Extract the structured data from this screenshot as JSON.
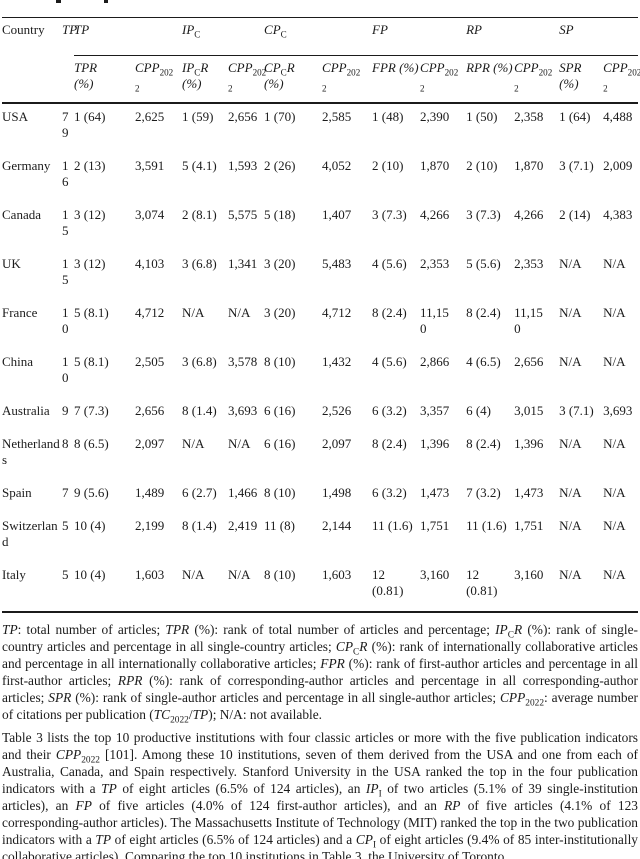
{
  "colors": {
    "background": "#ffffff",
    "text": "#1b1b1b",
    "rule": "#1b1b1b"
  },
  "table": {
    "header_groups": [
      {
        "name": "country",
        "rowspan": 2,
        "colspan": 1,
        "runs": [
          {
            "t": "Country"
          }
        ]
      },
      {
        "name": "tp-column",
        "rowspan": 2,
        "colspan": 1,
        "runs": [
          {
            "t": "TP",
            "i": 1
          }
        ]
      },
      {
        "name": "tp-group",
        "colspan": 2,
        "runs": [
          {
            "t": "TP",
            "i": 1
          }
        ]
      },
      {
        "name": "ipc-group",
        "colspan": 2,
        "runs": [
          {
            "t": "IP",
            "i": 1
          },
          {
            "t": "C",
            "s": 1
          }
        ]
      },
      {
        "name": "cpc-group",
        "colspan": 2,
        "runs": [
          {
            "t": "CP",
            "i": 1
          },
          {
            "t": "C",
            "s": 1
          }
        ]
      },
      {
        "name": "fp-group",
        "colspan": 2,
        "runs": [
          {
            "t": "FP",
            "i": 1
          }
        ]
      },
      {
        "name": "rp-group",
        "colspan": 2,
        "runs": [
          {
            "t": "RP",
            "i": 1
          }
        ]
      },
      {
        "name": "sp-group",
        "colspan": 2,
        "runs": [
          {
            "t": "SP",
            "i": 1
          }
        ]
      }
    ],
    "subheaders": [
      {
        "name": "tpr",
        "runs": [
          {
            "t": "TPR",
            "i": 1
          },
          {
            "br": 1
          },
          {
            "t": "(%)",
            "i": 1
          }
        ]
      },
      {
        "name": "cpp2022-tp",
        "runs": [
          {
            "t": "CPP",
            "i": 1
          },
          {
            "t": "202",
            "s": 1
          },
          {
            "br": 1
          },
          {
            "t": "2",
            "s": 1
          }
        ]
      },
      {
        "name": "ipcr",
        "runs": [
          {
            "t": "IP",
            "i": 1
          },
          {
            "t": "C",
            "s": 1
          },
          {
            "t": "R",
            "i": 1
          },
          {
            "br": 1
          },
          {
            "t": "(%)",
            "i": 1
          }
        ]
      },
      {
        "name": "cpp2022-ipc",
        "runs": [
          {
            "t": "CPP",
            "i": 1
          },
          {
            "t": "202",
            "s": 1
          },
          {
            "br": 1
          },
          {
            "t": "2",
            "s": 1
          }
        ]
      },
      {
        "name": "cpcr",
        "runs": [
          {
            "t": "CP",
            "i": 1
          },
          {
            "t": "C",
            "s": 1
          },
          {
            "t": "R",
            "i": 1
          },
          {
            "br": 1
          },
          {
            "t": "(%)",
            "i": 1
          }
        ]
      },
      {
        "name": "cpp2022-cpc",
        "runs": [
          {
            "t": "CPP",
            "i": 1
          },
          {
            "t": "202",
            "s": 1
          },
          {
            "br": 1
          },
          {
            "t": "2",
            "s": 1
          }
        ]
      },
      {
        "name": "fpr",
        "runs": [
          {
            "t": "FPR (%)",
            "i": 1
          }
        ]
      },
      {
        "name": "cpp2022-fp",
        "runs": [
          {
            "t": "CPP",
            "i": 1
          },
          {
            "t": "202",
            "s": 1
          },
          {
            "br": 1
          },
          {
            "t": "2",
            "s": 1
          }
        ]
      },
      {
        "name": "rpr",
        "runs": [
          {
            "t": "RPR (%)",
            "i": 1
          }
        ]
      },
      {
        "name": "cpp2022-rp",
        "runs": [
          {
            "t": "CPP",
            "i": 1
          },
          {
            "t": "202",
            "s": 1
          },
          {
            "br": 1
          },
          {
            "t": "2",
            "s": 1
          }
        ]
      },
      {
        "name": "spr",
        "runs": [
          {
            "t": "SPR",
            "i": 1
          },
          {
            "br": 1
          },
          {
            "t": "(%)",
            "i": 1
          }
        ]
      },
      {
        "name": "cpp2022-sp",
        "runs": [
          {
            "t": "CPP",
            "i": 1
          },
          {
            "t": "202",
            "s": 1
          },
          {
            "br": 1
          },
          {
            "t": "2",
            "s": 1
          }
        ]
      }
    ],
    "rows": [
      {
        "cells": [
          "USA",
          "79",
          "1 (64)",
          "2,625",
          "1 (59)",
          "2,656",
          "1 (70)",
          "2,585",
          "1 (48)",
          "2,390",
          "1 (50)",
          "2,358",
          "1 (64)",
          "4,488"
        ]
      },
      {
        "cells": [
          "Germany",
          "16",
          "2 (13)",
          "3,591",
          "5 (4.1)",
          "1,593",
          "2 (26)",
          "4,052",
          "2 (10)",
          "1,870",
          "2 (10)",
          "1,870",
          "3 (7.1)",
          "2,009"
        ]
      },
      {
        "cells": [
          "Canada",
          "15",
          "3 (12)",
          "3,074",
          "2 (8.1)",
          "5,575",
          "5 (18)",
          "1,407",
          "3 (7.3)",
          "4,266",
          "3 (7.3)",
          "4,266",
          "2 (14)",
          "4,383"
        ]
      },
      {
        "cells": [
          "UK",
          "15",
          "3 (12)",
          "4,103",
          "3 (6.8)",
          "1,341",
          "3 (20)",
          "5,483",
          "4 (5.6)",
          "2,353",
          "5 (5.6)",
          "2,353",
          "N/A",
          "N/A"
        ]
      },
      {
        "cells": [
          "France",
          "10",
          "5 (8.1)",
          "4,712",
          "N/A",
          "N/A",
          "3 (20)",
          "4,712",
          "8 (2.4)",
          "11,150",
          "8 (2.4)",
          "11,150",
          "N/A",
          "N/A"
        ]
      },
      {
        "cells": [
          "China",
          "10",
          "5 (8.1)",
          "2,505",
          "3 (6.8)",
          "3,578",
          "8 (10)",
          "1,432",
          "4 (5.6)",
          "2,866",
          "4 (6.5)",
          "2,656",
          "N/A",
          "N/A"
        ]
      },
      {
        "cells": [
          "Australia",
          "9",
          "7 (7.3)",
          "2,656",
          "8 (1.4)",
          "3,693",
          "6 (16)",
          "2,526",
          "6 (3.2)",
          "3,357",
          "6 (4)",
          "3,015",
          "3 (7.1)",
          "3,693"
        ]
      },
      {
        "cells": [
          "Netherlands",
          "8",
          "8 (6.5)",
          "2,097",
          "N/A",
          "N/A",
          "6 (16)",
          "2,097",
          "8 (2.4)",
          "1,396",
          "8 (2.4)",
          "1,396",
          "N/A",
          "N/A"
        ]
      },
      {
        "cells": [
          "Spain",
          "7",
          "9 (5.6)",
          "1,489",
          "6 (2.7)",
          "1,466",
          "8 (10)",
          "1,498",
          "6 (3.2)",
          "1,473",
          "7 (3.2)",
          "1,473",
          "N/A",
          "N/A"
        ]
      },
      {
        "cells": [
          "Switzerland",
          "5",
          "10 (4)",
          "2,199",
          "8 (1.4)",
          "2,419",
          "11 (8)",
          "2,144",
          "11 (1.6)",
          "1,751",
          "11 (1.6)",
          "1,751",
          "N/A",
          "N/A"
        ]
      },
      {
        "cells": [
          "Italy",
          "5",
          "10 (4)",
          "1,603",
          "N/A",
          "N/A",
          "8 (10)",
          "1,603",
          "12 (0.81)",
          "3,160",
          "12 (0.81)",
          "3,160",
          "N/A",
          "N/A"
        ]
      }
    ]
  },
  "footnote_runs": [
    {
      "t": "TP",
      "i": 1
    },
    {
      "t": ": total number of articles; "
    },
    {
      "t": "TPR",
      "i": 1
    },
    {
      "t": " (%): rank of total number of articles and percentage; "
    },
    {
      "t": "IP",
      "i": 1
    },
    {
      "t": "C",
      "s": 1
    },
    {
      "t": "R",
      "i": 1
    },
    {
      "t": " (%): rank of single-country articles and percentage in all single-country articles; "
    },
    {
      "t": "CP",
      "i": 1
    },
    {
      "t": "C",
      "s": 1
    },
    {
      "t": "R",
      "i": 1
    },
    {
      "t": " (%): rank of internationally collaborative articles and percentage in all internationally collaborative articles; "
    },
    {
      "t": "FPR",
      "i": 1
    },
    {
      "t": " (%): rank of first-author articles and percentage in all first-author articles; "
    },
    {
      "t": "RPR",
      "i": 1
    },
    {
      "t": " (%): rank of corresponding-author articles and percentage in all corresponding-author articles; "
    },
    {
      "t": "SPR",
      "i": 1
    },
    {
      "t": " (%): rank of single-author articles and percentage in all single-author articles; "
    },
    {
      "t": "CPP",
      "i": 1
    },
    {
      "t": "2022",
      "s": 1
    },
    {
      "t": ": average number of citations per publication ("
    },
    {
      "t": "TC",
      "i": 1
    },
    {
      "t": "2022",
      "s": 1
    },
    {
      "t": "/"
    },
    {
      "t": "TP",
      "i": 1
    },
    {
      "t": "); N/A: not available."
    }
  ],
  "paragraph_runs": [
    {
      "t": "Table 3 lists the top 10 productive institutions with four classic articles or more with the five publication indicators and their "
    },
    {
      "t": "CPP",
      "i": 1
    },
    {
      "t": "2022",
      "s": 1
    },
    {
      "t": " [101]. Among these 10 institutions, seven of them derived from the USA and one from each of Australia, Canada, and Spain respectively. Stanford University in the USA ranked the top in the four publication indicators with a "
    },
    {
      "t": "TP",
      "i": 1
    },
    {
      "t": " of eight articles (6.5% of 124 articles), an "
    },
    {
      "t": "IP",
      "i": 1
    },
    {
      "t": "I",
      "s": 1
    },
    {
      "t": " of two articles (5.1% of 39 single-institution articles), an "
    },
    {
      "t": "FP",
      "i": 1
    },
    {
      "t": " of five articles (4.0% of 124 first-author articles), and an "
    },
    {
      "t": "RP",
      "i": 1
    },
    {
      "t": " of five articles (4.1% of 123 corresponding-author articles). The Massachusetts Institute of Technology (MIT) ranked the top in the two publication indicators with a "
    },
    {
      "t": "TP",
      "i": 1
    },
    {
      "t": " of eight articles (6.5% of 124 articles) and a "
    },
    {
      "t": "CP",
      "i": 1
    },
    {
      "t": "I",
      "s": 1
    },
    {
      "t": " of eight articles (9.4% of 85 inter-institutionally collaborative articles). Comparing the top 10 institutions in Table 3, the University of Toronto"
    }
  ]
}
